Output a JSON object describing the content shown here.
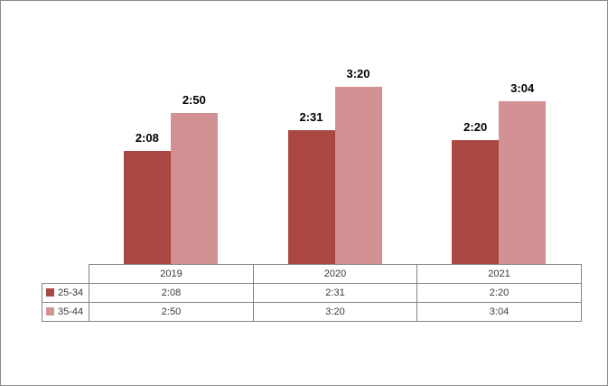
{
  "frame": {
    "background": "#FFFFFF",
    "border_color": "#8C8C8C"
  },
  "chart_data": {
    "type": "bar",
    "categories": [
      "2019",
      "2020",
      "2021"
    ],
    "series": [
      {
        "name": "25-34",
        "color": "#AB4743",
        "values": [
          "2:08",
          "2:31",
          "2:20"
        ],
        "values_minutes": [
          128,
          151,
          140
        ]
      },
      {
        "name": "35-44",
        "color": "#D29192",
        "values": [
          "2:50",
          "3:20",
          "3:04"
        ],
        "values_minutes": [
          170,
          200,
          184
        ]
      }
    ],
    "value_format": "h:mm",
    "data_labels_shown": true,
    "grid": false,
    "legend_position": "data-table-left",
    "axis_line_color": "#848484"
  },
  "data_table": {
    "border_color": "#848484",
    "text_color": "#3A3A3A"
  }
}
